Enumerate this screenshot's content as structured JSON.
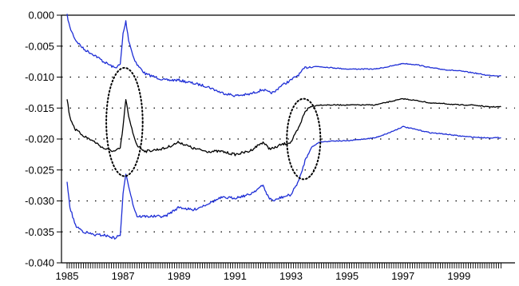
{
  "chart_data": {
    "type": "line",
    "title": "",
    "xlabel": "",
    "ylabel": "",
    "xlim": [
      1984.8,
      2001.0
    ],
    "ylim": [
      -0.04,
      0.0
    ],
    "grid": "horizontal dotted",
    "legend": "none",
    "x_tick_labels": [
      "1985",
      "1987",
      "1989",
      "1991",
      "1993",
      "1995",
      "1997",
      "1999"
    ],
    "y_tick_labels": [
      "0.000",
      "-0.005",
      "-0.010",
      "-0.015",
      "-0.020",
      "-0.025",
      "-0.030",
      "-0.035",
      "-0.040"
    ],
    "colors": {
      "upper_band": "#1f2fd6",
      "estimate": "#000000",
      "lower_band": "#1f2fd6",
      "annotation": "#000000"
    },
    "series": [
      {
        "role": "upper_band",
        "x": [
          1985.0,
          1985.1,
          1985.3,
          1985.6,
          1986.0,
          1986.3,
          1986.7,
          1986.9,
          1987.0,
          1987.1,
          1987.2,
          1987.35,
          1987.5,
          1987.8,
          1988.5,
          1989.0,
          1989.5,
          1990.0,
          1990.5,
          1991.0,
          1991.5,
          1992.0,
          1992.2,
          1992.4,
          1992.6,
          1993.0,
          1993.3,
          1993.5,
          1993.7,
          1994.0,
          1994.5,
          1995.0,
          1996.0,
          1996.5,
          1997.0,
          1997.5,
          1998.0,
          1998.5,
          1999.0,
          1999.5,
          2000.0,
          2000.5
        ],
        "y": [
          0.0,
          -0.002,
          -0.004,
          -0.0055,
          -0.0065,
          -0.0075,
          -0.0085,
          -0.008,
          -0.003,
          -0.001,
          -0.004,
          -0.0065,
          -0.008,
          -0.0095,
          -0.0105,
          -0.0105,
          -0.011,
          -0.0115,
          -0.0125,
          -0.013,
          -0.0128,
          -0.012,
          -0.0125,
          -0.0125,
          -0.0115,
          -0.0105,
          -0.0095,
          -0.0085,
          -0.0083,
          -0.0083,
          -0.0085,
          -0.0087,
          -0.0087,
          -0.0083,
          -0.0078,
          -0.008,
          -0.0085,
          -0.0088,
          -0.009,
          -0.0093,
          -0.0097,
          -0.0098
        ]
      },
      {
        "role": "estimate",
        "x": [
          1985.0,
          1985.1,
          1985.3,
          1985.6,
          1986.0,
          1986.3,
          1986.7,
          1986.9,
          1987.0,
          1987.1,
          1987.2,
          1987.35,
          1987.5,
          1987.8,
          1988.5,
          1989.0,
          1989.5,
          1990.0,
          1990.5,
          1991.0,
          1991.5,
          1992.0,
          1992.2,
          1992.4,
          1992.6,
          1993.0,
          1993.3,
          1993.5,
          1993.7,
          1994.0,
          1994.5,
          1995.0,
          1996.0,
          1996.5,
          1997.0,
          1997.5,
          1998.0,
          1998.5,
          1999.0,
          1999.5,
          2000.0,
          2000.5
        ],
        "y": [
          -0.0135,
          -0.0165,
          -0.0185,
          -0.0195,
          -0.0205,
          -0.0215,
          -0.022,
          -0.0215,
          -0.018,
          -0.0135,
          -0.0165,
          -0.019,
          -0.021,
          -0.022,
          -0.0215,
          -0.0205,
          -0.0215,
          -0.022,
          -0.022,
          -0.0225,
          -0.022,
          -0.0205,
          -0.0215,
          -0.0215,
          -0.021,
          -0.0205,
          -0.018,
          -0.0155,
          -0.0148,
          -0.0145,
          -0.0145,
          -0.0145,
          -0.0145,
          -0.014,
          -0.0135,
          -0.0138,
          -0.0142,
          -0.0143,
          -0.0145,
          -0.0145,
          -0.0148,
          -0.0148
        ]
      },
      {
        "role": "lower_band",
        "x": [
          1985.0,
          1985.1,
          1985.3,
          1985.6,
          1986.0,
          1986.3,
          1986.7,
          1986.9,
          1987.0,
          1987.1,
          1987.2,
          1987.35,
          1987.5,
          1987.8,
          1988.5,
          1989.0,
          1989.5,
          1990.0,
          1990.5,
          1991.0,
          1991.5,
          1992.0,
          1992.2,
          1992.4,
          1992.6,
          1993.0,
          1993.3,
          1993.5,
          1993.7,
          1994.0,
          1994.5,
          1995.0,
          1996.0,
          1996.5,
          1997.0,
          1997.5,
          1998.0,
          1998.5,
          1999.0,
          1999.5,
          2000.0,
          2000.5
        ],
        "y": [
          -0.027,
          -0.031,
          -0.034,
          -0.035,
          -0.0355,
          -0.0355,
          -0.036,
          -0.0355,
          -0.029,
          -0.0255,
          -0.0275,
          -0.0305,
          -0.0325,
          -0.0325,
          -0.0325,
          -0.031,
          -0.0315,
          -0.0305,
          -0.0295,
          -0.0295,
          -0.029,
          -0.0275,
          -0.0295,
          -0.03,
          -0.0295,
          -0.029,
          -0.0265,
          -0.0235,
          -0.0215,
          -0.0205,
          -0.0203,
          -0.0203,
          -0.0198,
          -0.019,
          -0.018,
          -0.0185,
          -0.019,
          -0.0192,
          -0.0195,
          -0.0197,
          -0.0198,
          -0.0198
        ]
      }
    ],
    "annotations": [
      {
        "shape": "dotted ellipse",
        "x_range": [
          1986.4,
          1987.7
        ],
        "y_range": [
          -0.026,
          -0.0085
        ]
      },
      {
        "shape": "dotted ellipse",
        "x_range": [
          1992.85,
          1994.05
        ],
        "y_range": [
          -0.0265,
          -0.0135
        ]
      }
    ]
  }
}
